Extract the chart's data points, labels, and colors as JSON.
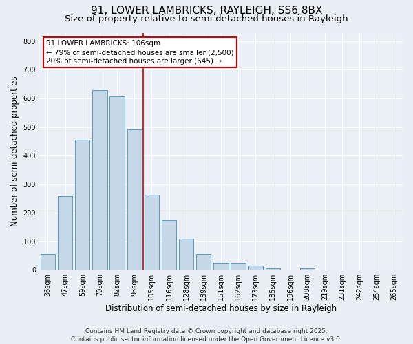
{
  "title1": "91, LOWER LAMBRICKS, RAYLEIGH, SS6 8BX",
  "title2": "Size of property relative to semi-detached houses in Rayleigh",
  "xlabel": "Distribution of semi-detached houses by size in Rayleigh",
  "ylabel": "Number of semi-detached properties",
  "categories": [
    "36sqm",
    "47sqm",
    "59sqm",
    "70sqm",
    "82sqm",
    "93sqm",
    "105sqm",
    "116sqm",
    "128sqm",
    "139sqm",
    "151sqm",
    "162sqm",
    "173sqm",
    "185sqm",
    "196sqm",
    "208sqm",
    "219sqm",
    "231sqm",
    "242sqm",
    "254sqm",
    "265sqm"
  ],
  "values": [
    55,
    258,
    456,
    630,
    608,
    491,
    263,
    174,
    110,
    55,
    25,
    25,
    15,
    5,
    0,
    5,
    0,
    0,
    0,
    0,
    0
  ],
  "bar_color": "#c5d8e8",
  "bar_edge_color": "#5a9abf",
  "annotation_text": "91 LOWER LAMBRICKS: 106sqm\n← 79% of semi-detached houses are smaller (2,500)\n20% of semi-detached houses are larger (645) →",
  "annotation_box_facecolor": "#ffffff",
  "annotation_box_edgecolor": "#cc0000",
  "vline_color": "#cc0000",
  "bg_color": "#e8eef4",
  "plot_bg_color": "#eaf0f6",
  "footer1": "Contains HM Land Registry data © Crown copyright and database right 2025.",
  "footer2": "Contains public sector information licensed under the Open Government Licence v3.0.",
  "ylim": [
    0,
    830
  ],
  "yticks": [
    0,
    100,
    200,
    300,
    400,
    500,
    600,
    700,
    800
  ],
  "title_fontsize": 11,
  "subtitle_fontsize": 9.5,
  "axis_label_fontsize": 8.5,
  "tick_fontsize": 7,
  "annotation_fontsize": 7.5,
  "footer_fontsize": 6.5,
  "bar_width": 0.85,
  "vline_index": 5.5
}
